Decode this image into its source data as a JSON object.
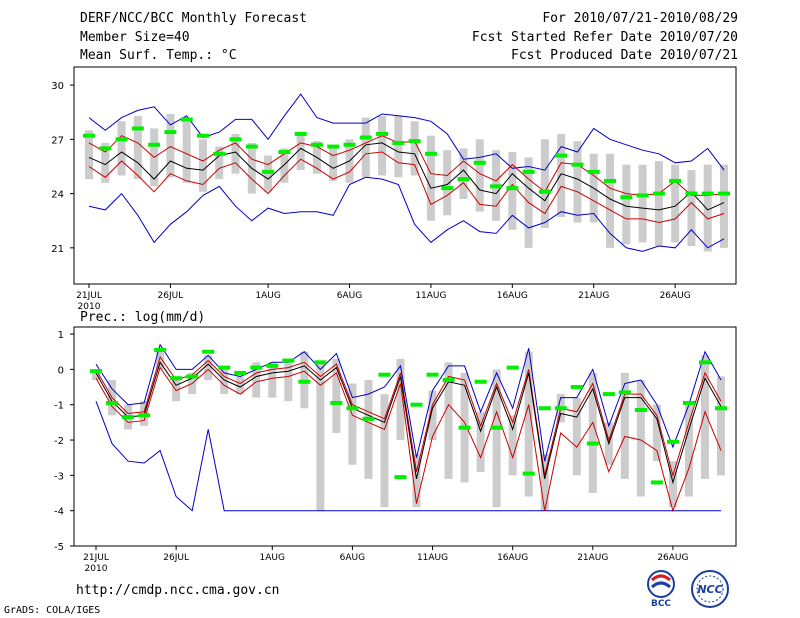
{
  "header": {
    "title": "DERF/NCC/BCC Monthly Forecast",
    "member_size": "Member Size=40",
    "fcst_period": "For 2010/07/21-2010/08/29",
    "fcst_started": "Fcst Started Refer Date 2010/07/20",
    "fcst_produced": "Fcst Produced Date 2010/07/21"
  },
  "footer": {
    "url": "http://cmdp.ncc.cma.gov.cn",
    "grads": "GrADS: COLA/IGES"
  },
  "logos": {
    "bcc": "BCC",
    "ncc": "NCC"
  },
  "chart_data": [
    {
      "type": "line",
      "panel": "temperature",
      "title": "Mean Surf. Temp.: °C",
      "ylim": [
        19,
        31
      ],
      "yticks": [
        21,
        24,
        27,
        30
      ],
      "x_tick_labels": [
        "21JUL",
        "26JUL",
        "1AUG",
        "6AUG",
        "11AUG",
        "16AUG",
        "21AUG",
        "26AUG"
      ],
      "x_tick_index": [
        0,
        5,
        11,
        16,
        21,
        26,
        31,
        36
      ],
      "year_label": "2010",
      "days": 40,
      "series": [
        {
          "name": "max",
          "color": "#0000cc",
          "values": [
            28.2,
            27.5,
            28.2,
            28.6,
            28.8,
            27.8,
            28.3,
            27.1,
            27.4,
            28.1,
            28.1,
            27.0,
            28.3,
            29.5,
            28.2,
            27.9,
            27.9,
            27.9,
            28.4,
            28.3,
            28.2,
            28.0,
            27.3,
            25.9,
            26.0,
            26.2,
            25.4,
            25.5,
            25.3,
            26.6,
            26.3,
            27.6,
            27.0,
            26.7,
            26.4,
            26.2,
            25.7,
            25.8,
            26.5,
            25.3
          ]
        },
        {
          "name": "upper",
          "color": "#cc0000",
          "values": [
            26.8,
            26.3,
            27.2,
            26.8,
            26.0,
            26.6,
            26.2,
            25.8,
            26.4,
            26.8,
            25.9,
            25.6,
            26.2,
            26.8,
            26.6,
            26.1,
            26.4,
            26.8,
            27.2,
            26.8,
            26.9,
            25.1,
            25.0,
            25.8,
            25.1,
            24.7,
            25.6,
            24.8,
            24.1,
            25.7,
            25.6,
            25.0,
            24.3,
            24.0,
            23.9,
            24.0,
            24.7,
            23.9,
            23.9,
            24.0
          ]
        },
        {
          "name": "mean",
          "color": "#000000",
          "values": [
            26.0,
            25.6,
            26.3,
            25.7,
            24.8,
            25.8,
            25.4,
            25.3,
            26.1,
            26.3,
            25.4,
            24.8,
            25.6,
            26.5,
            26.0,
            25.4,
            25.8,
            26.7,
            26.8,
            26.3,
            26.2,
            24.3,
            24.5,
            25.3,
            24.2,
            24.0,
            25.1,
            24.3,
            23.6,
            25.1,
            24.8,
            24.3,
            23.7,
            23.3,
            23.2,
            23.1,
            23.3,
            24.1,
            23.1,
            23.5
          ]
        },
        {
          "name": "lower",
          "color": "#cc0000",
          "values": [
            25.5,
            24.9,
            25.8,
            25.0,
            24.1,
            25.1,
            24.7,
            24.5,
            25.4,
            25.7,
            24.8,
            24.0,
            25.0,
            25.9,
            25.4,
            24.8,
            25.2,
            26.2,
            26.3,
            25.7,
            25.6,
            23.4,
            23.9,
            24.6,
            23.4,
            23.3,
            24.5,
            23.5,
            22.9,
            24.4,
            24.1,
            23.6,
            23.1,
            22.6,
            22.6,
            22.4,
            22.6,
            23.5,
            22.6,
            22.9
          ]
        },
        {
          "name": "min",
          "color": "#0000cc",
          "values": [
            23.3,
            23.1,
            24.0,
            22.8,
            21.3,
            22.3,
            23.0,
            23.9,
            24.4,
            23.3,
            22.5,
            23.2,
            22.9,
            23.0,
            23.0,
            22.8,
            24.5,
            24.9,
            24.8,
            24.5,
            22.3,
            21.3,
            22.0,
            22.5,
            21.9,
            21.8,
            22.8,
            22.1,
            22.4,
            23.0,
            22.8,
            22.9,
            21.8,
            21.0,
            20.8,
            21.1,
            21.0,
            22.0,
            21.0,
            21.5
          ]
        },
        {
          "name": "ensemble_spread_high",
          "color": "#cccccc",
          "values": [
            27.5,
            26.8,
            28.0,
            28.3,
            27.6,
            28.4,
            28.2,
            27.0,
            26.6,
            27.3,
            26.8,
            26.1,
            26.5,
            27.3,
            26.9,
            26.6,
            27.0,
            28.2,
            28.3,
            28.3,
            28.0,
            27.2,
            26.4,
            26.5,
            27.0,
            26.4,
            26.3,
            26.0,
            27.0,
            27.3,
            26.9,
            26.2,
            26.2,
            25.6,
            25.6,
            25.8,
            25.6,
            25.3,
            25.6,
            25.6
          ]
        },
        {
          "name": "ensemble_spread_low",
          "color": "#cccccc",
          "values": [
            24.8,
            24.6,
            25.0,
            24.8,
            24.4,
            24.9,
            24.6,
            24.1,
            24.8,
            25.1,
            24.0,
            24.1,
            24.6,
            25.3,
            25.1,
            24.7,
            24.6,
            24.9,
            25.0,
            24.9,
            25.0,
            22.5,
            22.8,
            23.7,
            23.0,
            22.5,
            22.0,
            21.0,
            22.1,
            22.7,
            22.4,
            22.4,
            21.0,
            21.2,
            21.3,
            21.1,
            21.3,
            21.1,
            20.8,
            21.0
          ]
        },
        {
          "name": "observation_marker",
          "color": "#00ee00",
          "values": [
            27.2,
            26.5,
            27.0,
            27.6,
            26.7,
            27.4,
            28.1,
            27.2,
            26.2,
            27.0,
            26.6,
            25.2,
            26.3,
            27.3,
            26.7,
            26.6,
            26.7,
            27.1,
            27.3,
            26.8,
            26.9,
            26.2,
            24.3,
            24.8,
            25.7,
            24.4,
            24.3,
            25.2,
            24.1,
            26.1,
            25.6,
            25.2,
            24.7,
            23.8,
            23.9,
            24.0,
            24.7,
            24.0,
            24.0,
            24.0
          ]
        }
      ]
    },
    {
      "type": "line",
      "panel": "precipitation",
      "title": "Prec.: log(mm/d)",
      "ylim": [
        -5,
        1.2
      ],
      "yticks": [
        -5,
        -4,
        -3,
        -2,
        -1,
        0,
        1
      ],
      "x_tick_labels": [
        "21JUL",
        "26JUL",
        "1AUG",
        "6AUG",
        "11AUG",
        "16AUG",
        "21AUG",
        "26AUG"
      ],
      "x_tick_index": [
        0,
        5,
        11,
        16,
        21,
        26,
        31,
        36
      ],
      "year_label": "2010",
      "days": 40,
      "series": [
        {
          "name": "max",
          "color": "#0000cc",
          "values": [
            0.15,
            -0.55,
            -1.0,
            -0.95,
            0.7,
            0.0,
            0.0,
            0.4,
            -0.1,
            -0.2,
            0.0,
            0.2,
            0.2,
            0.5,
            0.0,
            0.45,
            -0.8,
            -0.7,
            -0.5,
            0.1,
            -2.5,
            -0.6,
            0.1,
            0.1,
            -1.2,
            -0.1,
            -1.1,
            0.6,
            -2.6,
            -0.8,
            -0.8,
            0.0,
            -1.6,
            -0.4,
            -0.3,
            -1.0,
            -2.2,
            -1.0,
            0.5,
            -0.3
          ]
        },
        {
          "name": "upper",
          "color": "#cc0000",
          "values": [
            0.0,
            -0.8,
            -1.25,
            -1.2,
            0.35,
            -0.3,
            -0.15,
            0.25,
            -0.2,
            -0.4,
            -0.1,
            0.0,
            0.05,
            0.2,
            -0.2,
            0.15,
            -1.0,
            -1.2,
            -1.4,
            -0.1,
            -2.9,
            -1.0,
            -0.2,
            -0.3,
            -1.6,
            -0.4,
            -1.5,
            0.0,
            -3.0,
            -1.1,
            -1.2,
            -0.4,
            -2.0,
            -0.7,
            -0.7,
            -1.3,
            -3.0,
            -1.5,
            -0.1,
            -0.9
          ]
        },
        {
          "name": "mean",
          "color": "#000000",
          "values": [
            -0.1,
            -0.9,
            -1.35,
            -1.3,
            0.2,
            -0.45,
            -0.25,
            0.15,
            -0.3,
            -0.5,
            -0.2,
            -0.1,
            -0.05,
            0.1,
            -0.3,
            0.05,
            -1.1,
            -1.3,
            -1.5,
            -0.2,
            -3.1,
            -1.1,
            -0.35,
            -0.45,
            -1.75,
            -0.5,
            -1.7,
            -0.1,
            -3.1,
            -1.25,
            -1.35,
            -0.55,
            -2.1,
            -0.8,
            -0.8,
            -1.4,
            -3.2,
            -1.7,
            -0.25,
            -1.05
          ]
        },
        {
          "name": "lower",
          "color": "#cc0000",
          "values": [
            -0.25,
            -1.05,
            -1.5,
            -1.45,
            0.05,
            -0.6,
            -0.4,
            0.0,
            -0.45,
            -0.7,
            -0.35,
            -0.25,
            -0.2,
            -0.05,
            -0.45,
            -0.1,
            -1.3,
            -1.5,
            -1.7,
            -0.4,
            -3.8,
            -1.9,
            -1.0,
            -1.5,
            -2.5,
            -1.2,
            -2.5,
            -1.0,
            -4.0,
            -1.8,
            -2.2,
            -1.5,
            -2.9,
            -1.9,
            -2.0,
            -2.3,
            -4.0,
            -2.8,
            -1.2,
            -2.3
          ]
        },
        {
          "name": "min",
          "color": "#0000cc",
          "values": [
            -0.9,
            -2.1,
            -2.6,
            -2.65,
            -2.3,
            -3.6,
            -4.0,
            -1.7,
            -4.0,
            -4.0,
            -4.0,
            -4.0,
            -4.0,
            -4.0,
            -4.0,
            -4.0,
            -4.0,
            -4.0,
            -4.0,
            -4.0,
            -4.0,
            -4.0,
            -4.0,
            -4.0,
            -4.0,
            -4.0,
            -4.0,
            -4.0,
            -4.0,
            -4.0,
            -4.0,
            -4.0,
            -4.0,
            -4.0,
            -4.0,
            -4.0,
            -4.0,
            -4.0,
            -4.0,
            -4.0
          ]
        },
        {
          "name": "ensemble_spread_high",
          "color": "#cccccc",
          "values": [
            0.0,
            -0.3,
            -1.0,
            -0.9,
            0.6,
            -0.2,
            -0.1,
            0.4,
            0.0,
            -0.2,
            0.2,
            0.2,
            0.2,
            0.5,
            0.2,
            0.3,
            -0.4,
            -0.3,
            -0.7,
            0.3,
            -2.4,
            -0.6,
            0.2,
            -0.1,
            -1.2,
            0.0,
            -1.3,
            0.5,
            -2.4,
            -0.7,
            -0.8,
            -0.1,
            -1.5,
            -0.1,
            -0.3,
            -1.0,
            -2.6,
            -1.0,
            0.4,
            -0.2
          ]
        },
        {
          "name": "ensemble_spread_low",
          "color": "#cccccc",
          "values": [
            -0.3,
            -1.3,
            -1.7,
            -1.6,
            0.0,
            -0.9,
            -0.7,
            -0.3,
            -0.7,
            -0.7,
            -0.8,
            -0.8,
            -0.9,
            -1.1,
            -4.0,
            -1.8,
            -2.7,
            -3.1,
            -3.9,
            -2.0,
            -3.9,
            -2.0,
            -3.1,
            -3.2,
            -2.9,
            -3.9,
            -3.0,
            -3.6,
            -4.0,
            -1.5,
            -3.0,
            -3.5,
            -2.7,
            -3.1,
            -3.6,
            -2.6,
            -3.9,
            -3.6,
            -3.1,
            -3.0
          ]
        },
        {
          "name": "observation_marker",
          "color": "#00ee00",
          "values": [
            -0.05,
            -0.95,
            -1.35,
            -1.3,
            0.55,
            -0.25,
            -0.2,
            0.5,
            0.05,
            -0.1,
            0.05,
            0.1,
            0.25,
            -0.35,
            0.2,
            -0.95,
            -1.1,
            -1.4,
            -0.15,
            -3.05,
            -1.0,
            -0.15,
            -0.3,
            -1.65,
            -0.35,
            -1.65,
            0.05,
            -2.95,
            -1.1,
            -1.1,
            -0.5,
            -2.1,
            -0.7,
            -0.65,
            -1.15,
            -3.2,
            -2.05,
            -0.95,
            0.2,
            -1.1
          ]
        }
      ]
    }
  ]
}
